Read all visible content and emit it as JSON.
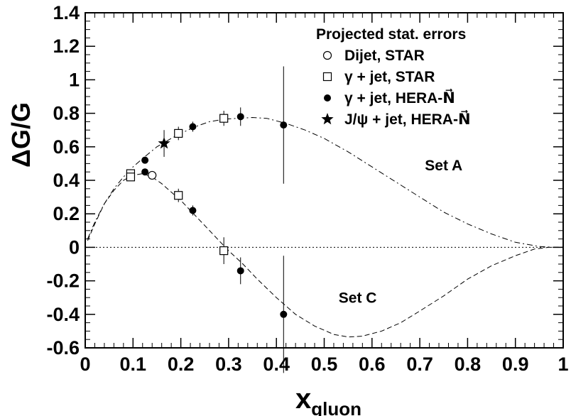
{
  "chart_data": {
    "type": "scatter",
    "title": "",
    "xlabel": "x",
    "xlabel_sub": "gluon",
    "ylabel": "ΔG/G",
    "xlim": [
      0,
      1
    ],
    "ylim": [
      -0.6,
      1.4
    ],
    "x_ticks": [
      {
        "v": 0,
        "label": "0"
      },
      {
        "v": 0.1,
        "label": "0.1"
      },
      {
        "v": 0.2,
        "label": "0.2"
      },
      {
        "v": 0.3,
        "label": "0.3"
      },
      {
        "v": 0.4,
        "label": "0.4"
      },
      {
        "v": 0.5,
        "label": "0.5"
      },
      {
        "v": 0.6,
        "label": "0.6"
      },
      {
        "v": 0.7,
        "label": "0.7"
      },
      {
        "v": 0.8,
        "label": "0.8"
      },
      {
        "v": 0.9,
        "label": "0.9"
      },
      {
        "v": 1.0,
        "label": "1"
      }
    ],
    "y_ticks": [
      {
        "v": -0.6,
        "label": "-0.6"
      },
      {
        "v": -0.4,
        "label": "-0.4"
      },
      {
        "v": -0.2,
        "label": "-0.2"
      },
      {
        "v": 0,
        "label": "0"
      },
      {
        "v": 0.2,
        "label": "0.2"
      },
      {
        "v": 0.4,
        "label": "0.4"
      },
      {
        "v": 0.6,
        "label": "0.6"
      },
      {
        "v": 0.8,
        "label": "0.8"
      },
      {
        "v": 1.0,
        "label": "1"
      },
      {
        "v": 1.2,
        "label": "1.2"
      },
      {
        "v": 1.4,
        "label": "1.4"
      }
    ],
    "grid": false,
    "zero_line": true,
    "legend": {
      "title": "Projected stat. errors",
      "placement": "top-right",
      "entries": [
        {
          "marker": "open-circle",
          "label": "Dijet, STAR"
        },
        {
          "marker": "open-square",
          "label": "γ + jet, STAR"
        },
        {
          "marker": "filled-circle",
          "label": "γ + jet, HERA-N⃗"
        },
        {
          "marker": "star",
          "label": "J/ψ + jet, HERA-N⃗"
        }
      ]
    },
    "curves": [
      {
        "name": "Set A",
        "style": "dash-dot",
        "x": [
          0.005,
          0.02,
          0.04,
          0.06,
          0.08,
          0.1,
          0.12,
          0.15,
          0.18,
          0.2,
          0.23,
          0.26,
          0.29,
          0.32,
          0.35,
          0.38,
          0.42,
          0.46,
          0.5,
          0.55,
          0.6,
          0.65,
          0.7,
          0.75,
          0.8,
          0.85,
          0.9,
          0.95,
          0.98,
          1.0
        ],
        "y": [
          0.05,
          0.15,
          0.26,
          0.35,
          0.42,
          0.48,
          0.53,
          0.6,
          0.65,
          0.68,
          0.72,
          0.75,
          0.765,
          0.77,
          0.775,
          0.77,
          0.74,
          0.7,
          0.65,
          0.57,
          0.48,
          0.39,
          0.3,
          0.21,
          0.14,
          0.08,
          0.03,
          0.005,
          0,
          0
        ]
      },
      {
        "name": "Set C",
        "style": "dashed",
        "x": [
          0.005,
          0.02,
          0.04,
          0.06,
          0.08,
          0.1,
          0.12,
          0.14,
          0.16,
          0.18,
          0.2,
          0.22,
          0.25,
          0.28,
          0.3,
          0.33,
          0.36,
          0.4,
          0.44,
          0.48,
          0.52,
          0.55,
          0.58,
          0.62,
          0.66,
          0.7,
          0.75,
          0.8,
          0.85,
          0.9,
          0.94,
          0.97,
          1.0
        ],
        "y": [
          0.04,
          0.14,
          0.26,
          0.34,
          0.4,
          0.43,
          0.44,
          0.42,
          0.38,
          0.33,
          0.28,
          0.22,
          0.13,
          0.04,
          -0.02,
          -0.1,
          -0.19,
          -0.3,
          -0.4,
          -0.47,
          -0.52,
          -0.535,
          -0.53,
          -0.5,
          -0.45,
          -0.38,
          -0.29,
          -0.19,
          -0.11,
          -0.05,
          -0.01,
          0,
          0
        ]
      }
    ],
    "series": [
      {
        "name": "Dijet, STAR",
        "marker": "open-circle",
        "points": [
          {
            "x": 0.14,
            "y": 0.43,
            "err": 0.0
          }
        ]
      },
      {
        "name": "γ + jet, STAR",
        "marker": "open-square",
        "points": [
          {
            "x": 0.095,
            "y": 0.44,
            "err": 0.02
          },
          {
            "x": 0.095,
            "y": 0.42,
            "err": 0.02
          },
          {
            "x": 0.195,
            "y": 0.68,
            "err": 0.04
          },
          {
            "x": 0.195,
            "y": 0.31,
            "err": 0.04
          },
          {
            "x": 0.29,
            "y": 0.77,
            "err": 0.045
          },
          {
            "x": 0.29,
            "y": -0.02,
            "err": 0.08
          }
        ]
      },
      {
        "name": "γ + jet, HERA-N⃗",
        "marker": "filled-circle",
        "points": [
          {
            "x": 0.125,
            "y": 0.52,
            "err": 0.02
          },
          {
            "x": 0.125,
            "y": 0.45,
            "err": 0.02
          },
          {
            "x": 0.225,
            "y": 0.72,
            "err": 0.03
          },
          {
            "x": 0.225,
            "y": 0.22,
            "err": 0.03
          },
          {
            "x": 0.325,
            "y": 0.78,
            "err": 0.055
          },
          {
            "x": 0.325,
            "y": -0.14,
            "err": 0.08
          },
          {
            "x": 0.415,
            "y": 0.73,
            "err": 0.35
          },
          {
            "x": 0.415,
            "y": -0.4,
            "err": 0.35
          }
        ]
      },
      {
        "name": "J/ψ + jet, HERA-N⃗",
        "marker": "star",
        "points": [
          {
            "x": 0.165,
            "y": 0.62,
            "err": 0.08
          }
        ]
      }
    ],
    "annotations": [
      {
        "text": "Set A",
        "x": 0.75,
        "y": 0.46
      },
      {
        "text": "Set C",
        "x": 0.57,
        "y": -0.33
      }
    ]
  }
}
